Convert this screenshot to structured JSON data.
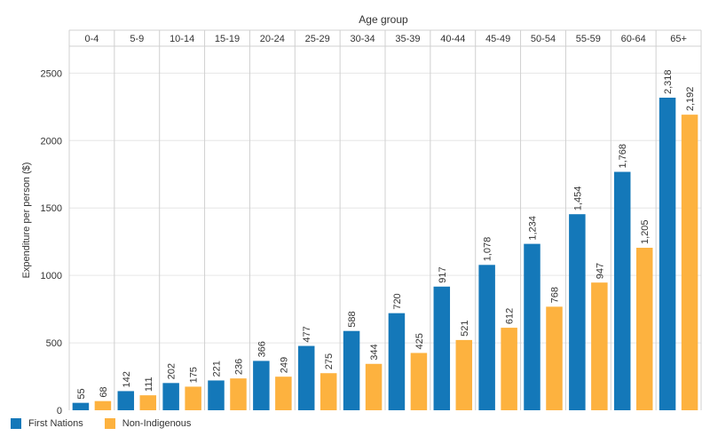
{
  "chart_data": {
    "type": "bar",
    "facet_title": "Age group",
    "ylabel": "Expenditure per person ($)",
    "ylim": [
      0,
      2700
    ],
    "yticks": [
      0,
      500,
      1000,
      1500,
      2000,
      2500
    ],
    "ytick_labels": [
      "0",
      "500",
      "1000",
      "1500",
      "2000",
      "2500"
    ],
    "categories": [
      "0-4",
      "5-9",
      "10-14",
      "15-19",
      "20-24",
      "25-29",
      "30-34",
      "35-39",
      "40-44",
      "45-49",
      "50-54",
      "55-59",
      "60-64",
      "65+"
    ],
    "series": [
      {
        "name": "First Nations",
        "color": "#1478b9",
        "values": [
          55,
          142,
          202,
          221,
          366,
          477,
          588,
          720,
          917,
          1078,
          1234,
          1454,
          1768,
          2318
        ],
        "labels": [
          "55",
          "142",
          "202",
          "221",
          "366",
          "477",
          "588",
          "720",
          "917",
          "1,078",
          "1,234",
          "1,454",
          "1,768",
          "2,318"
        ]
      },
      {
        "name": "Non-Indigenous",
        "color": "#fdb23f",
        "values": [
          68,
          111,
          175,
          236,
          249,
          275,
          344,
          425,
          521,
          612,
          768,
          947,
          1205,
          2192
        ],
        "labels": [
          "68",
          "111",
          "175",
          "236",
          "249",
          "275",
          "344",
          "425",
          "521",
          "612",
          "768",
          "947",
          "1,205",
          "2,192"
        ]
      }
    ],
    "legend_position": "bottom-left"
  }
}
